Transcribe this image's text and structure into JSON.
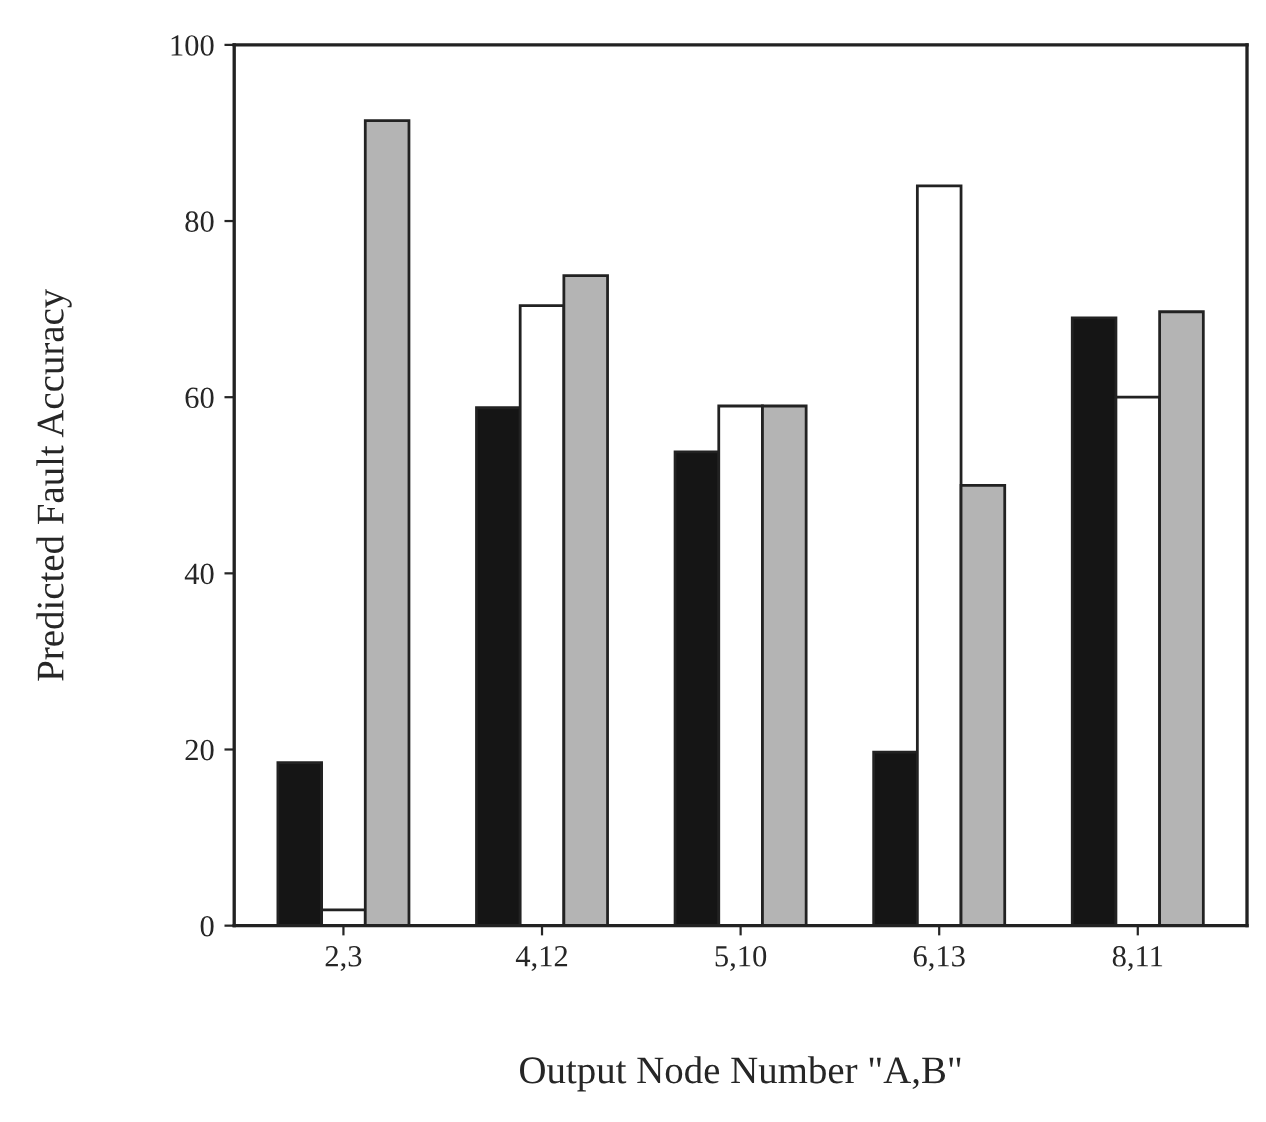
{
  "chart_data": {
    "type": "bar",
    "xlabel": "Output Node Number \"A,B\"",
    "ylabel": "Predicted Fault Accuracy",
    "categories": [
      "2,3",
      "4,12",
      "5,10",
      "6,13",
      "8,11"
    ],
    "series": [
      {
        "color": "#151515",
        "values": [
          18.5,
          58.8,
          53.8,
          19.7,
          69
        ]
      },
      {
        "color": "#ffffff",
        "values": [
          1.8,
          70.4,
          59,
          84,
          60
        ]
      },
      {
        "color": "#b4b4b4",
        "values": [
          91.4,
          73.8,
          59,
          50,
          69.7
        ]
      }
    ],
    "ylim": [
      0,
      100
    ],
    "yticks": [
      0,
      20,
      40,
      60,
      80,
      100
    ],
    "grid": false
  }
}
